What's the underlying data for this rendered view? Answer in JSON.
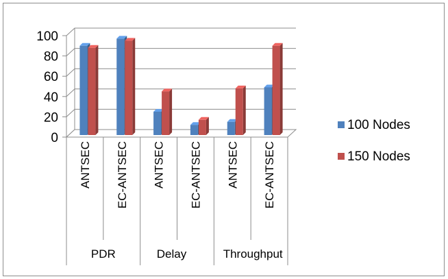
{
  "chart_data": {
    "type": "bar",
    "style": "3d-clustered-column",
    "groups": [
      {
        "label": "PDR",
        "categories": [
          "ANTSEC",
          "EC-ANTSEC"
        ]
      },
      {
        "label": "Delay",
        "categories": [
          "ANTSEC",
          "EC-ANTSEC"
        ]
      },
      {
        "label": "Throughput",
        "categories": [
          "ANTSEC",
          "EC-ANTSEC"
        ]
      }
    ],
    "categories": [
      "ANTSEC",
      "EC-ANTSEC",
      "ANTSEC",
      "EC-ANTSEC",
      "ANTSEC",
      "EC-ANTSEC"
    ],
    "series": [
      {
        "name": "100 Nodes",
        "color": "#4f81bd",
        "values": [
          88,
          95,
          23,
          10,
          13,
          47
        ]
      },
      {
        "name": "150 Nodes",
        "color": "#c0504d",
        "values": [
          86,
          93,
          43,
          15,
          46,
          88
        ]
      }
    ],
    "ylim": [
      0,
      100
    ],
    "yticks": [
      "0",
      "20",
      "40",
      "60",
      "80",
      "100"
    ],
    "xlabel": "",
    "ylabel": "",
    "title": "",
    "grid": true,
    "legend_position": "right"
  }
}
